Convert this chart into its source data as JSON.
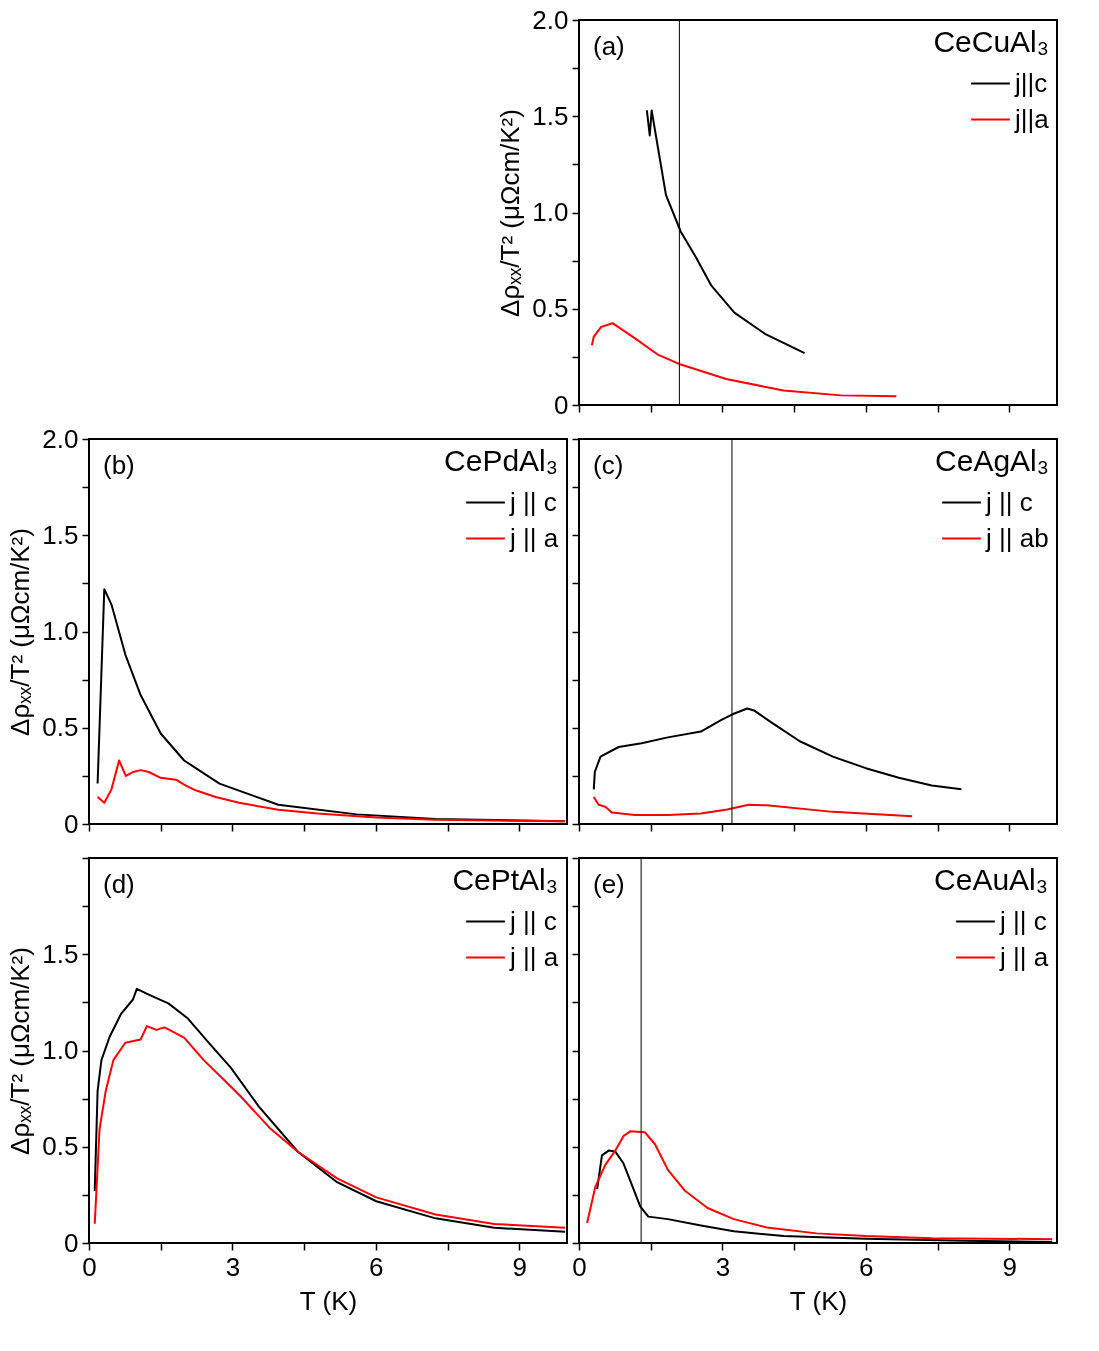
{
  "chart_data": [
    {
      "type": "line",
      "annotations": [
        "(a)"
      ],
      "ylabel": "Δρₓₓ/T² (μΩcm/K²)",
      "legend_title": "CeCuAl₃",
      "legend": "top right",
      "tick_labels": "y",
      "xlim": [
        0,
        10
      ],
      "xticks": [
        0,
        {
          "value": 1.5,
          "label": null
        },
        3,
        {
          "value": 4.5,
          "label": null
        },
        6,
        {
          "value": 7.5,
          "label": null
        },
        9
      ],
      "ylim": [
        0,
        2
      ],
      "yticks": [
        0,
        {
          "value": 0.25,
          "label": null
        },
        0.5,
        {
          "value": 0.75,
          "label": null
        },
        {
          "value": 1,
          "label": "1.0"
        },
        {
          "value": 1.25,
          "label": null
        },
        1.5,
        {
          "value": 1.75,
          "label": null
        },
        {
          "value": 2,
          "label": "2.0"
        }
      ],
      "ref_lines": [
        {
          "axis": "x",
          "value": 2.1,
          "color": "#000000"
        }
      ],
      "series": [
        {
          "name": "j||c",
          "color": "#000000",
          "x": [
            1.42,
            1.48,
            1.52,
            1.82,
            2.13,
            2.44,
            2.77,
            3.25,
            3.89,
            4.72
          ],
          "values": [
            1.53,
            1.4,
            1.53,
            1.09,
            0.9,
            0.77,
            0.62,
            0.48,
            0.37,
            0.27
          ]
        },
        {
          "name": "j||a",
          "color": "#ff0000",
          "x": [
            0.27,
            0.31,
            0.46,
            0.7,
            1.18,
            1.66,
            2.13,
            3.08,
            4.28,
            5.48,
            6.64
          ],
          "values": [
            0.31,
            0.355,
            0.405,
            0.425,
            0.345,
            0.26,
            0.21,
            0.135,
            0.075,
            0.05,
            0.045
          ]
        }
      ]
    },
    {
      "type": "line",
      "annotations": [
        "(b)"
      ],
      "ylabel": "Δρₓₓ/T² (μΩcm/K²)",
      "legend_title": "CePdAl₃",
      "legend": "top right",
      "tick_labels": "y",
      "xlim": [
        0,
        10
      ],
      "xticks": [
        0,
        {
          "value": 1.5,
          "label": null
        },
        3,
        {
          "value": 4.5,
          "label": null
        },
        6,
        {
          "value": 7.5,
          "label": null
        },
        9
      ],
      "ylim": [
        0,
        2
      ],
      "yticks": [
        0,
        {
          "value": 0.25,
          "label": null
        },
        0.5,
        {
          "value": 0.75,
          "label": null
        },
        {
          "value": 1,
          "label": "1.0"
        },
        {
          "value": 1.25,
          "label": null
        },
        1.5,
        {
          "value": 1.75,
          "label": null
        },
        {
          "value": 2,
          "label": "2.0"
        }
      ],
      "series": [
        {
          "name": "j || c",
          "color": "#000000",
          "x": [
            0.18,
            0.32,
            0.47,
            0.76,
            1.08,
            1.5,
            1.99,
            2.73,
            3.96,
            5.6,
            7.25,
            9.96
          ],
          "values": [
            0.21,
            1.22,
            1.14,
            0.88,
            0.67,
            0.47,
            0.33,
            0.21,
            0.1,
            0.05,
            0.026,
            0.014
          ]
        },
        {
          "name": "j || a",
          "color": "#ff0000",
          "x": [
            0.18,
            0.32,
            0.47,
            0.63,
            0.77,
            0.92,
            1.08,
            1.25,
            1.5,
            1.82,
            1.99,
            2.23,
            2.65,
            3.14,
            3.96,
            4.78,
            6.01,
            7.25,
            9.96
          ],
          "values": [
            0.14,
            0.11,
            0.18,
            0.33,
            0.25,
            0.27,
            0.28,
            0.27,
            0.24,
            0.23,
            0.205,
            0.175,
            0.14,
            0.11,
            0.074,
            0.054,
            0.034,
            0.022,
            0.014
          ]
        }
      ]
    },
    {
      "type": "line",
      "annotations": [
        "(c)"
      ],
      "legend_title": "CeAgAl₃",
      "legend": "top right",
      "tick_labels": false,
      "xlim": [
        0,
        10
      ],
      "xticks": [
        0,
        {
          "value": 1.5,
          "label": null
        },
        3,
        {
          "value": 4.5,
          "label": null
        },
        6,
        {
          "value": 7.5,
          "label": null
        },
        9
      ],
      "ylim": [
        0,
        2
      ],
      "yticks": [
        {
          "value": 0,
          "label": null
        },
        {
          "value": 0.25,
          "label": null
        },
        {
          "value": 0.5,
          "label": null
        },
        {
          "value": 0.75,
          "label": null
        },
        {
          "value": 1,
          "label": null
        },
        {
          "value": 1.25,
          "label": null
        },
        {
          "value": 1.5,
          "label": null
        },
        {
          "value": 1.75,
          "label": null
        },
        {
          "value": 2,
          "label": null
        }
      ],
      "ref_lines": [
        {
          "axis": "x",
          "value": 3.2,
          "color": "#000000"
        }
      ],
      "series": [
        {
          "name": "j || c",
          "color": "#000000",
          "x": [
            0.31,
            0.33,
            0.45,
            0.83,
            1.31,
            1.86,
            2.55,
            2.97,
            3.21,
            3.52,
            3.66,
            4.07,
            4.62,
            5.31,
            6.0,
            6.69,
            7.38,
            8.0
          ],
          "values": [
            0.18,
            0.27,
            0.35,
            0.4,
            0.42,
            0.45,
            0.48,
            0.54,
            0.57,
            0.6,
            0.59,
            0.52,
            0.43,
            0.35,
            0.29,
            0.24,
            0.2,
            0.18
          ]
        },
        {
          "name": "j || ab",
          "color": "#ff0000",
          "x": [
            0.31,
            0.41,
            0.55,
            0.69,
            1.17,
            1.86,
            2.55,
            3.1,
            3.55,
            3.93,
            5.31,
            6.97
          ],
          "values": [
            0.14,
            0.1,
            0.09,
            0.06,
            0.047,
            0.047,
            0.055,
            0.075,
            0.1,
            0.097,
            0.063,
            0.04
          ]
        }
      ]
    },
    {
      "type": "line",
      "annotations": [
        "(d)"
      ],
      "xlabel": "T (K)",
      "ylabel": "Δρₓₓ/T² (μΩcm/K²)",
      "legend_title": "CePtAl₃",
      "legend": "top right",
      "xlim": [
        0,
        10
      ],
      "xticks": [
        0,
        {
          "value": 1.5,
          "label": null
        },
        3,
        {
          "value": 4.5,
          "label": null
        },
        6,
        {
          "value": 7.5,
          "label": null
        },
        9
      ],
      "ylim": [
        0,
        2
      ],
      "yticks": [
        0,
        {
          "value": 0.25,
          "label": null
        },
        0.5,
        {
          "value": 0.75,
          "label": null
        },
        {
          "value": 1,
          "label": "1.0"
        },
        {
          "value": 1.25,
          "label": null
        },
        1.5,
        {
          "value": 1.75,
          "label": null
        },
        {
          "value": 2,
          "label": null
        }
      ],
      "series": [
        {
          "name": "j || c",
          "color": "#000000",
          "x": [
            0.12,
            0.18,
            0.26,
            0.43,
            0.67,
            0.92,
            1.0,
            1.25,
            1.66,
            2.07,
            2.48,
            2.97,
            3.55,
            4.37,
            5.19,
            6.01,
            7.25,
            8.48,
            9.96
          ],
          "values": [
            0.27,
            0.79,
            0.95,
            1.07,
            1.19,
            1.265,
            1.32,
            1.29,
            1.245,
            1.166,
            1.047,
            0.91,
            0.71,
            0.474,
            0.316,
            0.217,
            0.128,
            0.079,
            0.059
          ]
        },
        {
          "name": "j || a",
          "color": "#ff0000",
          "x": [
            0.12,
            0.22,
            0.35,
            0.51,
            0.76,
            1.08,
            1.21,
            1.41,
            1.58,
            1.99,
            2.4,
            2.73,
            3.14,
            3.8,
            4.37,
            5.19,
            6.01,
            7.25,
            8.48,
            9.96
          ],
          "values": [
            0.1,
            0.59,
            0.79,
            0.95,
            1.04,
            1.057,
            1.127,
            1.107,
            1.12,
            1.067,
            0.95,
            0.87,
            0.77,
            0.593,
            0.474,
            0.336,
            0.237,
            0.148,
            0.099,
            0.079
          ]
        }
      ]
    },
    {
      "type": "line",
      "annotations": [
        "(e)"
      ],
      "xlabel": "T (K)",
      "legend_title": "CeAuAl₃",
      "legend": "top right",
      "tick_labels": "x",
      "xlim": [
        0,
        10
      ],
      "xticks": [
        0,
        {
          "value": 1.5,
          "label": null
        },
        3,
        {
          "value": 4.5,
          "label": null
        },
        6,
        {
          "value": 7.5,
          "label": null
        },
        9
      ],
      "ylim": [
        0,
        2
      ],
      "yticks": [
        {
          "value": 0,
          "label": null
        },
        {
          "value": 0.25,
          "label": null
        },
        {
          "value": 0.5,
          "label": null
        },
        {
          "value": 0.75,
          "label": null
        },
        {
          "value": 1,
          "label": null
        },
        {
          "value": 1.25,
          "label": null
        },
        {
          "value": 1.5,
          "label": null
        },
        {
          "value": 1.75,
          "label": null
        },
        {
          "value": 2,
          "label": null
        }
      ],
      "ref_lines": [
        {
          "axis": "x",
          "value": 1.3,
          "color": "#000000"
        }
      ],
      "series": [
        {
          "name": "j || c",
          "color": "#000000",
          "x": [
            0.38,
            0.48,
            0.62,
            0.76,
            0.93,
            1.1,
            1.28,
            1.45,
            1.86,
            2.55,
            3.24,
            4.28,
            6.0,
            8.07,
            9.9
          ],
          "values": [
            0.28,
            0.455,
            0.48,
            0.475,
            0.414,
            0.306,
            0.19,
            0.137,
            0.124,
            0.091,
            0.061,
            0.036,
            0.022,
            0.012,
            0.005
          ]
        },
        {
          "name": "j || a",
          "color": "#ff0000",
          "x": [
            0.17,
            0.34,
            0.55,
            0.76,
            0.93,
            1.07,
            1.38,
            1.59,
            1.86,
            2.21,
            2.69,
            3.24,
            3.93,
            4.97,
            6.0,
            7.38,
            9.9
          ],
          "values": [
            0.104,
            0.29,
            0.406,
            0.48,
            0.555,
            0.58,
            0.575,
            0.513,
            0.38,
            0.273,
            0.182,
            0.124,
            0.081,
            0.05,
            0.036,
            0.025,
            0.02
          ]
        }
      ]
    }
  ]
}
